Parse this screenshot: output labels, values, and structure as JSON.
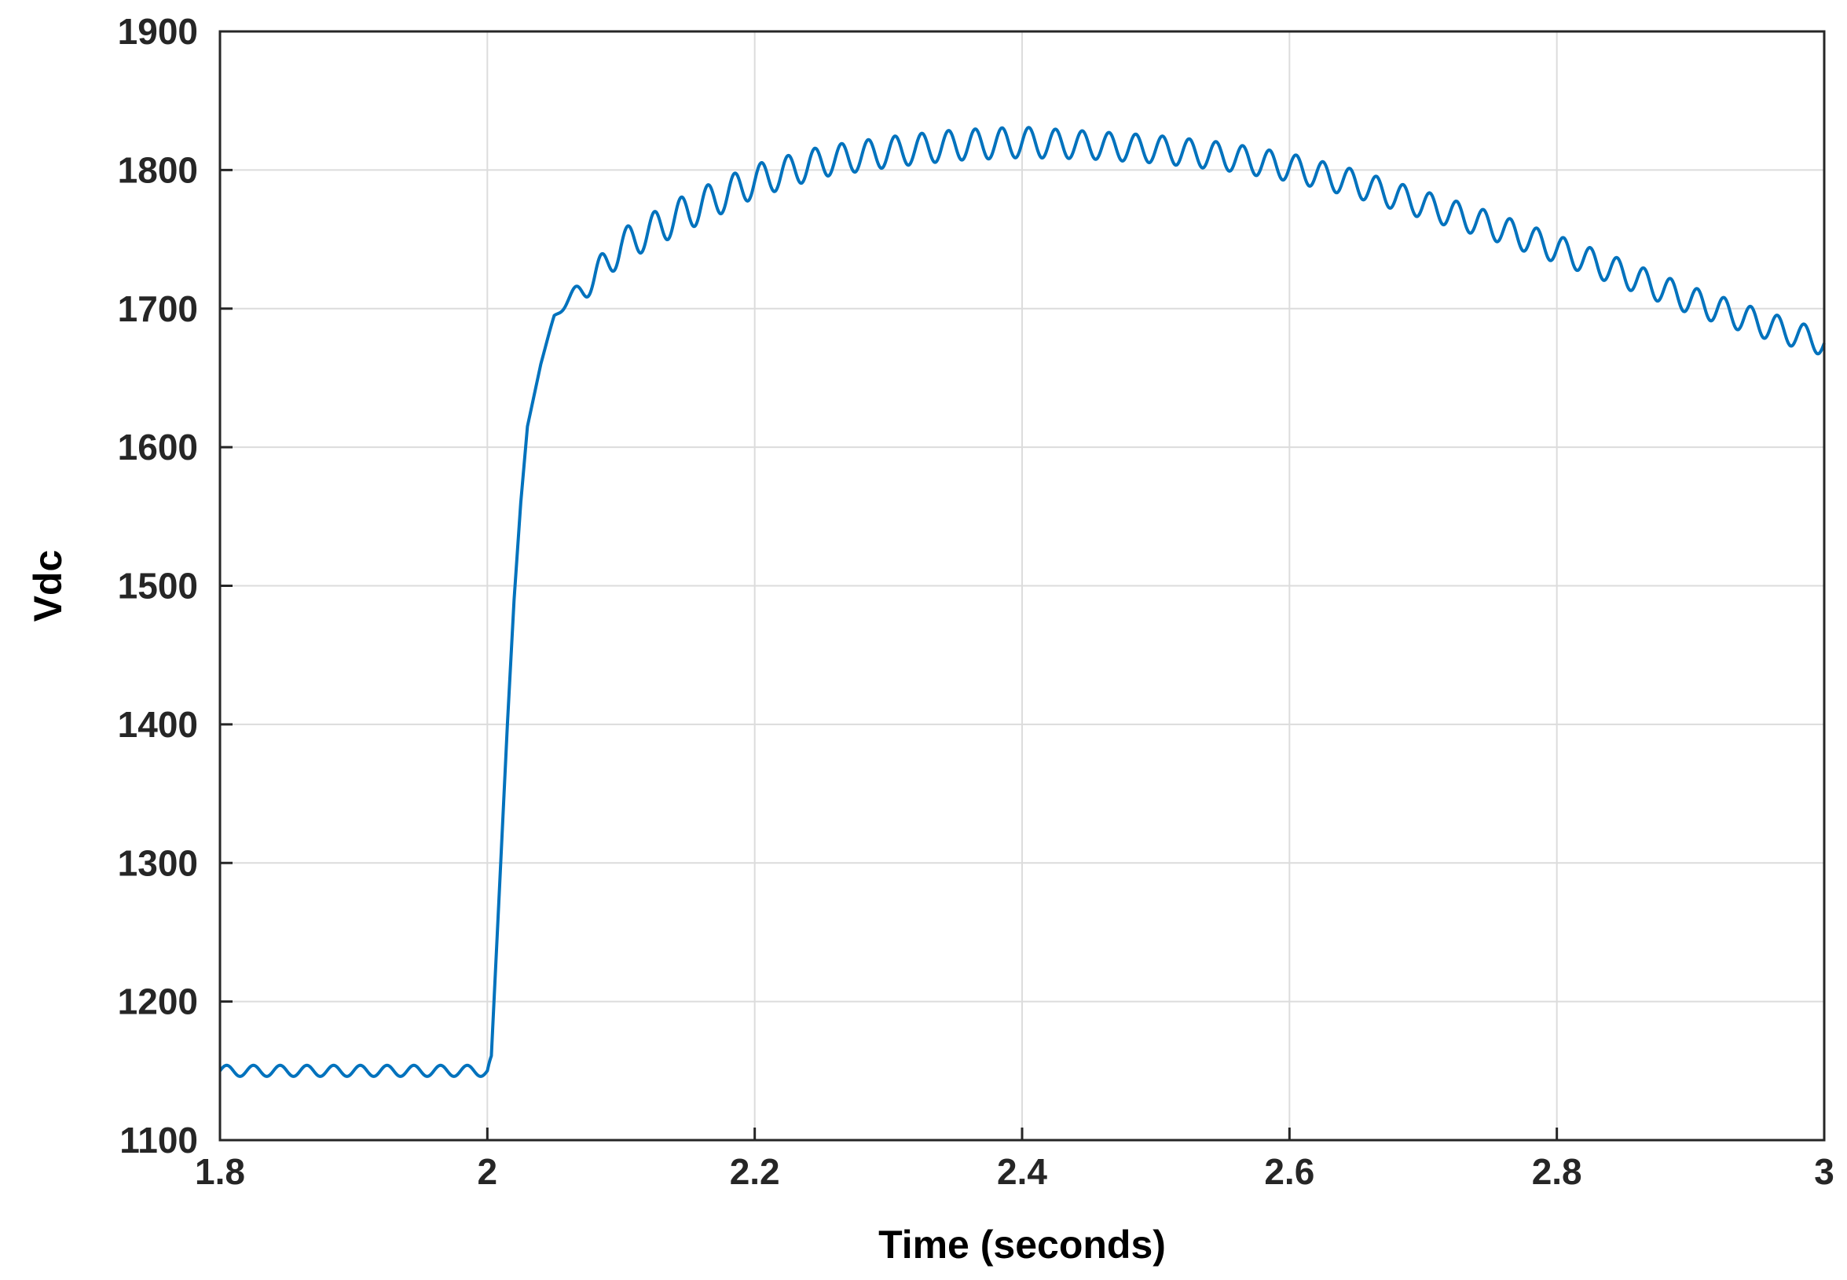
{
  "chart_data": {
    "type": "line",
    "title": "",
    "xlabel": "Time (seconds)",
    "ylabel": "Vdc",
    "xlim": [
      1.8,
      3.0
    ],
    "ylim": [
      1100,
      1900
    ],
    "grid": true,
    "legend": "none",
    "x_ticks": [
      "1.8",
      "2",
      "2.2",
      "2.4",
      "2.6",
      "2.8",
      "3"
    ],
    "y_ticks": [
      "1100",
      "1200",
      "1300",
      "1400",
      "1500",
      "1600",
      "1700",
      "1800",
      "1900"
    ],
    "series": [
      {
        "color": "#0072BD",
        "ripple_period": 0.02,
        "envelope": {
          "x": [
            1.8,
            2.0,
            2.003,
            2.01,
            2.015,
            2.02,
            2.025,
            2.03,
            2.04,
            2.05,
            2.06,
            2.08,
            2.1,
            2.15,
            2.2,
            2.25,
            2.3,
            2.35,
            2.4,
            2.45,
            2.5,
            2.55,
            2.6,
            2.65,
            2.7,
            2.75,
            2.8,
            2.85,
            2.9,
            2.95,
            3.0
          ],
          "y": [
            1150,
            1150,
            1160,
            1300,
            1400,
            1490,
            1560,
            1615,
            1660,
            1695,
            1705,
            1722,
            1745,
            1770,
            1792,
            1806,
            1813,
            1818,
            1820,
            1818,
            1815,
            1810,
            1802,
            1790,
            1775,
            1760,
            1743,
            1725,
            1706,
            1690,
            1675
          ],
          "amplitude": [
            4,
            4,
            1,
            0,
            0,
            0,
            0,
            0,
            0,
            1,
            4,
            11,
            12,
            13,
            12,
            11,
            11,
            11,
            11,
            10,
            10,
            10,
            10,
            10,
            10,
            10,
            10,
            10,
            10,
            10,
            9
          ]
        }
      }
    ]
  }
}
